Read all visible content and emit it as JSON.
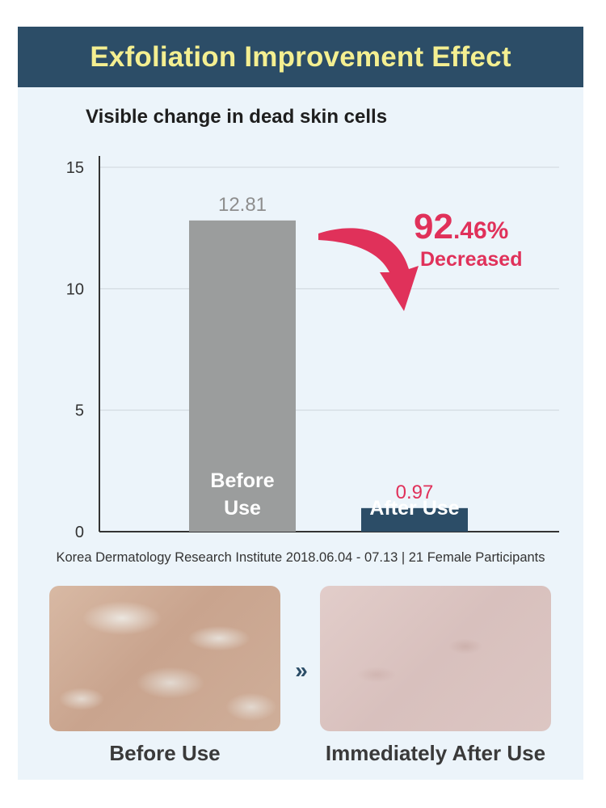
{
  "banner": {
    "title": "Exfoliation Improvement Effect"
  },
  "chart_data": {
    "type": "bar",
    "title": "Visible change in dead skin cells",
    "categories": [
      "Before Use",
      "After Use"
    ],
    "bar_labels": [
      "Before\nUse",
      "After Use"
    ],
    "values": [
      12.81,
      0.97
    ],
    "value_labels": [
      "12.81",
      "0.97"
    ],
    "ylim": [
      0,
      15
    ],
    "yticks": [
      0,
      5,
      10,
      15
    ],
    "ytick_labels": [
      "0",
      "5",
      "10",
      "15"
    ],
    "grid": true,
    "colors": {
      "before": "#9b9d9d",
      "after": "#2c4d67",
      "before_value": "#8e8e8e",
      "after_value": "#e0315a",
      "accent": "#e0315a"
    },
    "annotation": {
      "percent_main": "92",
      "percent_rest": ".46%",
      "text": "Decreased"
    }
  },
  "source": "Korea Dermatology Research Institute 2018.06.04 - 07.13 | 21 Female Participants",
  "photos": {
    "before_label": "Before Use",
    "after_label": "Immediately After Use",
    "divider_icon": "double-chevron-right-icon"
  }
}
